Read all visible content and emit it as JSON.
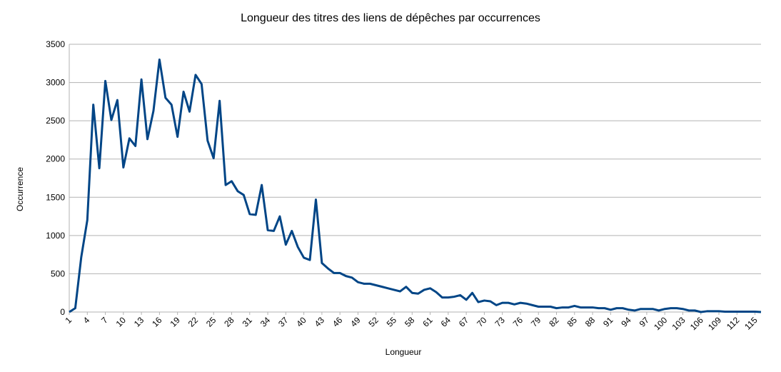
{
  "chart_data": {
    "type": "line",
    "title": "Longueur des titres des liens de dépêches par occurrences",
    "x_label": "Longueur",
    "y_label": "Occurrence",
    "x": [
      1,
      2,
      3,
      4,
      5,
      6,
      7,
      8,
      9,
      10,
      11,
      12,
      13,
      14,
      15,
      16,
      17,
      18,
      19,
      20,
      21,
      22,
      23,
      24,
      25,
      26,
      27,
      28,
      29,
      30,
      31,
      32,
      33,
      34,
      35,
      36,
      37,
      38,
      39,
      40,
      41,
      42,
      43,
      44,
      45,
      46,
      47,
      48,
      49,
      50,
      51,
      52,
      53,
      54,
      55,
      56,
      57,
      58,
      59,
      60,
      61,
      62,
      63,
      64,
      65,
      66,
      67,
      68,
      69,
      70,
      71,
      72,
      73,
      74,
      75,
      76,
      77,
      78,
      79,
      80,
      81,
      82,
      83,
      84,
      85,
      86,
      87,
      88,
      89,
      90,
      91,
      92,
      93,
      94,
      95,
      96,
      97,
      98,
      99,
      100,
      101,
      102,
      103,
      104,
      105,
      106,
      107,
      108,
      109,
      110,
      111,
      112,
      113,
      114,
      115,
      116
    ],
    "series": [
      {
        "name": "Occurrence",
        "color": "#004586",
        "values": [
          0,
          50,
          720,
          1200,
          2710,
          1880,
          3020,
          2510,
          2770,
          1890,
          2270,
          2170,
          3040,
          2260,
          2630,
          3300,
          2800,
          2710,
          2290,
          2880,
          2620,
          3100,
          2980,
          2240,
          2010,
          2760,
          1660,
          1710,
          1580,
          1530,
          1280,
          1270,
          1660,
          1070,
          1060,
          1250,
          880,
          1060,
          850,
          710,
          680,
          1470,
          640,
          570,
          510,
          510,
          470,
          450,
          390,
          370,
          370,
          350,
          330,
          310,
          290,
          270,
          330,
          250,
          240,
          290,
          310,
          260,
          190,
          190,
          200,
          220,
          160,
          250,
          130,
          150,
          140,
          90,
          120,
          120,
          100,
          120,
          110,
          90,
          70,
          70,
          70,
          50,
          60,
          60,
          80,
          60,
          60,
          60,
          50,
          50,
          30,
          50,
          50,
          30,
          20,
          40,
          40,
          40,
          20,
          40,
          50,
          50,
          40,
          20,
          20,
          0,
          10,
          10,
          10,
          5,
          5,
          5,
          5,
          5,
          5,
          0
        ]
      }
    ],
    "xlim": [
      1,
      116
    ],
    "xticks": [
      1,
      4,
      7,
      10,
      13,
      16,
      19,
      22,
      25,
      28,
      31,
      34,
      37,
      40,
      43,
      46,
      49,
      52,
      55,
      58,
      61,
      64,
      67,
      70,
      73,
      76,
      79,
      82,
      85,
      88,
      91,
      94,
      97,
      100,
      103,
      106,
      109,
      112,
      115
    ],
    "ylim": [
      0,
      3500
    ],
    "yticks": [
      0,
      500,
      1000,
      1500,
      2000,
      2500,
      3000,
      3500
    ],
    "grid": true
  }
}
